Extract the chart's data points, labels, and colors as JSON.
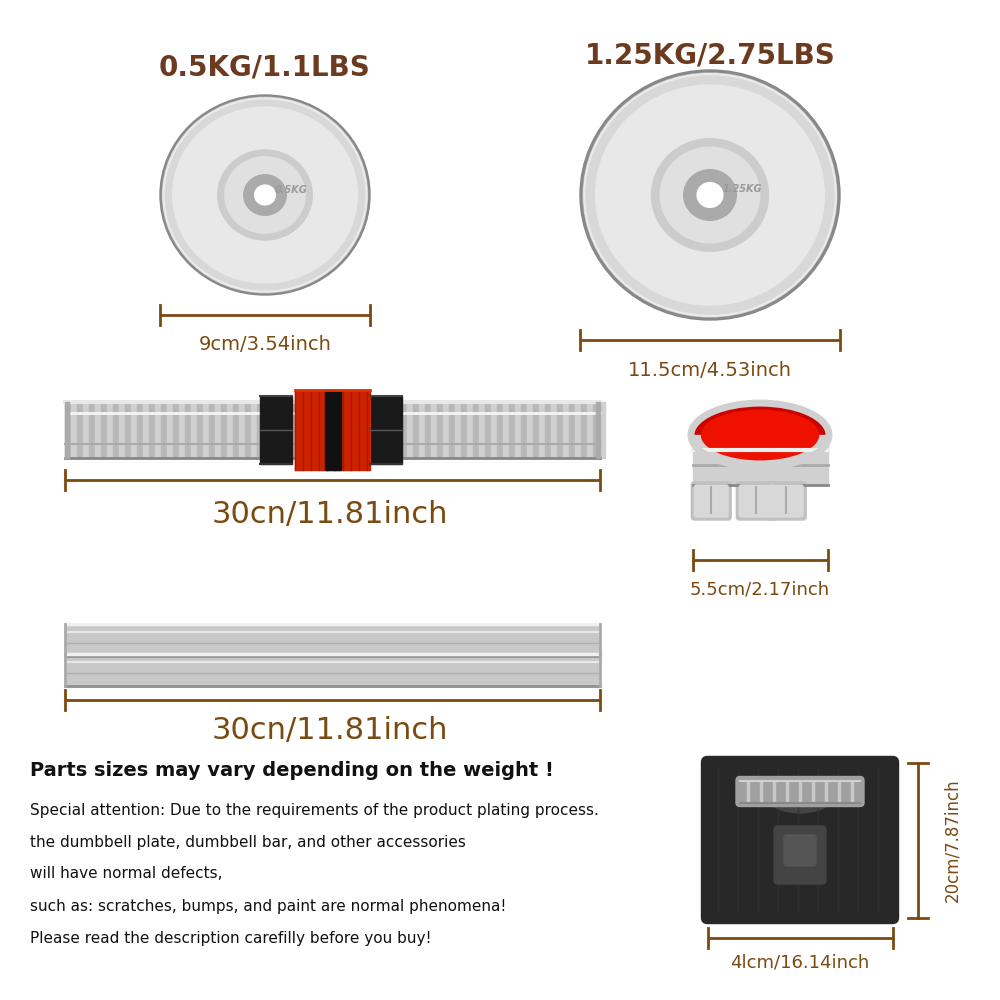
{
  "bg_color": "#ffffff",
  "title_color": "#6b3a1f",
  "measurement_color": "#7a4a10",
  "arrow_color": "#7a4a10",
  "label1": "0.5KG/1.1LBS",
  "label2": "1.25KG/2.75LBS",
  "dim1": "9cm/3.54inch",
  "dim2": "11.5cm/4.53inch",
  "dim3": "30cn/11.81inch",
  "dim3b": "30cn/11.81inch",
  "dim4": "5.5cm/2.17inch",
  "dim5_w": "4lcm/16.14inch",
  "dim5_h": "20cm/7.87inch",
  "warning": "Parts sizes may vary depending on the weight !",
  "note_lines": [
    "Special attention: Due to the requirements of the product plating process.",
    "the dumbbell plate, dumbbell bar, and other accessories",
    "will have normal defects,",
    "such as: scratches, bumps, and paint are normal phenomena!",
    "Please read the description carefilly before you buy!"
  ]
}
